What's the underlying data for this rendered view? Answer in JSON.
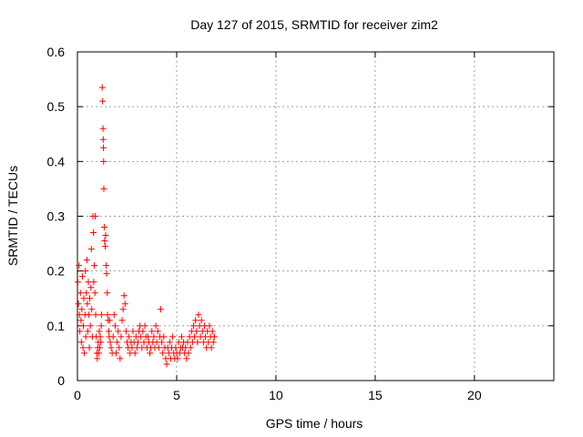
{
  "chart_data": {
    "type": "scatter",
    "title": "Day 127 of 2015, SRMTID for receiver zim2",
    "xlabel": "GPS time / hours",
    "ylabel": "SRMTID / TECUs",
    "xlim": [
      0,
      24
    ],
    "ylim": [
      0,
      0.6
    ],
    "x_ticks": [
      0,
      5,
      10,
      15,
      20
    ],
    "x_tick_labels": [
      "0",
      "5",
      "10",
      "15",
      "20"
    ],
    "y_ticks": [
      0,
      0.1,
      0.2,
      0.3,
      0.4,
      0.5,
      0.6
    ],
    "y_tick_labels": [
      "0",
      "0.1",
      "0.2",
      "0.3",
      "0.4",
      "0.5",
      "0.6"
    ],
    "grid": true,
    "marker": "+",
    "color": "#ff0000",
    "series": [
      {
        "name": "SRMTID",
        "points": [
          [
            0.02,
            0.18
          ],
          [
            0.05,
            0.14
          ],
          [
            0.08,
            0.21
          ],
          [
            0.1,
            0.12
          ],
          [
            0.12,
            0.09
          ],
          [
            0.15,
            0.16
          ],
          [
            0.18,
            0.11
          ],
          [
            0.2,
            0.07
          ],
          [
            0.22,
            0.13
          ],
          [
            0.25,
            0.19
          ],
          [
            0.28,
            0.06
          ],
          [
            0.3,
            0.1
          ],
          [
            0.32,
            0.15
          ],
          [
            0.35,
            0.05
          ],
          [
            0.38,
            0.12
          ],
          [
            0.4,
            0.2
          ],
          [
            0.42,
            0.08
          ],
          [
            0.45,
            0.16
          ],
          [
            0.48,
            0.22
          ],
          [
            0.5,
            0.14
          ],
          [
            0.52,
            0.09
          ],
          [
            0.55,
            0.18
          ],
          [
            0.58,
            0.12
          ],
          [
            0.6,
            0.06
          ],
          [
            0.62,
            0.15
          ],
          [
            0.65,
            0.1
          ],
          [
            0.68,
            0.17
          ],
          [
            0.7,
            0.24
          ],
          [
            0.72,
            0.13
          ],
          [
            0.75,
            0.08
          ],
          [
            0.78,
            0.3
          ],
          [
            0.8,
            0.27
          ],
          [
            0.82,
            0.18
          ],
          [
            0.85,
            0.21
          ],
          [
            0.88,
            0.16
          ],
          [
            0.9,
            0.3
          ],
          [
            0.92,
            0.12
          ],
          [
            0.95,
            0.08
          ],
          [
            0.98,
            0.05
          ],
          [
            1.0,
            0.04
          ],
          [
            1.02,
            0.06
          ],
          [
            1.05,
            0.07
          ],
          [
            1.08,
            0.05
          ],
          [
            1.1,
            0.09
          ],
          [
            1.12,
            0.06
          ],
          [
            1.15,
            0.08
          ],
          [
            1.18,
            0.07
          ],
          [
            1.2,
            0.1
          ],
          [
            1.22,
            0.12
          ],
          [
            1.25,
            0.535
          ],
          [
            1.27,
            0.51
          ],
          [
            1.29,
            0.46
          ],
          [
            1.3,
            0.44
          ],
          [
            1.31,
            0.425
          ],
          [
            1.32,
            0.4
          ],
          [
            1.33,
            0.35
          ],
          [
            1.35,
            0.28
          ],
          [
            1.37,
            0.255
          ],
          [
            1.4,
            0.245
          ],
          [
            1.42,
            0.265
          ],
          [
            1.45,
            0.21
          ],
          [
            1.47,
            0.195
          ],
          [
            1.5,
            0.16
          ],
          [
            1.52,
            0.12
          ],
          [
            1.55,
            0.11
          ],
          [
            1.58,
            0.09
          ],
          [
            1.6,
            0.08
          ],
          [
            1.62,
            0.11
          ],
          [
            1.65,
            0.07
          ],
          [
            1.7,
            0.06
          ],
          [
            1.75,
            0.05
          ],
          [
            1.8,
            0.08
          ],
          [
            1.85,
            0.12
          ],
          [
            1.9,
            0.1
          ],
          [
            1.95,
            0.05
          ],
          [
            2.0,
            0.07
          ],
          [
            2.05,
            0.09
          ],
          [
            2.1,
            0.06
          ],
          [
            2.15,
            0.04
          ],
          [
            2.2,
            0.08
          ],
          [
            2.25,
            0.11
          ],
          [
            2.3,
            0.13
          ],
          [
            2.35,
            0.155
          ],
          [
            2.4,
            0.14
          ],
          [
            2.45,
            0.09
          ],
          [
            2.5,
            0.07
          ],
          [
            2.55,
            0.06
          ],
          [
            2.6,
            0.08
          ],
          [
            2.65,
            0.05
          ],
          [
            2.7,
            0.07
          ],
          [
            2.75,
            0.06
          ],
          [
            2.8,
            0.09
          ],
          [
            2.85,
            0.07
          ],
          [
            2.9,
            0.05
          ],
          [
            2.95,
            0.08
          ],
          [
            3.0,
            0.06
          ],
          [
            3.05,
            0.07
          ],
          [
            3.1,
            0.09
          ],
          [
            3.15,
            0.1
          ],
          [
            3.2,
            0.08
          ],
          [
            3.25,
            0.06
          ],
          [
            3.3,
            0.09
          ],
          [
            3.35,
            0.07
          ],
          [
            3.4,
            0.1
          ],
          [
            3.45,
            0.08
          ],
          [
            3.5,
            0.06
          ],
          [
            3.55,
            0.08
          ],
          [
            3.6,
            0.07
          ],
          [
            3.65,
            0.05
          ],
          [
            3.7,
            0.06
          ],
          [
            3.75,
            0.09
          ],
          [
            3.8,
            0.07
          ],
          [
            3.85,
            0.08
          ],
          [
            3.9,
            0.06
          ],
          [
            3.95,
            0.1
          ],
          [
            4.0,
            0.07
          ],
          [
            4.05,
            0.09
          ],
          [
            4.1,
            0.06
          ],
          [
            4.15,
            0.08
          ],
          [
            4.2,
            0.13
          ],
          [
            4.25,
            0.07
          ],
          [
            4.3,
            0.05
          ],
          [
            4.35,
            0.08
          ],
          [
            4.4,
            0.06
          ],
          [
            4.45,
            0.04
          ],
          [
            4.5,
            0.03
          ],
          [
            4.55,
            0.06
          ],
          [
            4.6,
            0.05
          ],
          [
            4.65,
            0.07
          ],
          [
            4.7,
            0.04
          ],
          [
            4.75,
            0.06
          ],
          [
            4.8,
            0.08
          ],
          [
            4.85,
            0.05
          ],
          [
            4.9,
            0.04
          ],
          [
            4.95,
            0.06
          ],
          [
            5.0,
            0.05
          ],
          [
            5.05,
            0.04
          ],
          [
            5.1,
            0.07
          ],
          [
            5.15,
            0.05
          ],
          [
            5.2,
            0.06
          ],
          [
            5.25,
            0.08
          ],
          [
            5.3,
            0.06
          ],
          [
            5.35,
            0.07
          ],
          [
            5.4,
            0.05
          ],
          [
            5.45,
            0.06
          ],
          [
            5.5,
            0.04
          ],
          [
            5.55,
            0.07
          ],
          [
            5.6,
            0.05
          ],
          [
            5.65,
            0.08
          ],
          [
            5.7,
            0.06
          ],
          [
            5.75,
            0.09
          ],
          [
            5.8,
            0.07
          ],
          [
            5.85,
            0.1
          ],
          [
            5.9,
            0.08
          ],
          [
            5.95,
            0.11
          ],
          [
            6.0,
            0.09
          ],
          [
            6.05,
            0.07
          ],
          [
            6.1,
            0.12
          ],
          [
            6.15,
            0.1
          ],
          [
            6.2,
            0.08
          ],
          [
            6.25,
            0.11
          ],
          [
            6.3,
            0.09
          ],
          [
            6.35,
            0.07
          ],
          [
            6.4,
            0.1
          ],
          [
            6.45,
            0.08
          ],
          [
            6.5,
            0.06
          ],
          [
            6.55,
            0.09
          ],
          [
            6.6,
            0.07
          ],
          [
            6.65,
            0.1
          ],
          [
            6.7,
            0.08
          ],
          [
            6.75,
            0.06
          ],
          [
            6.8,
            0.09
          ],
          [
            6.85,
            0.07
          ],
          [
            6.9,
            0.08
          ]
        ]
      }
    ]
  }
}
